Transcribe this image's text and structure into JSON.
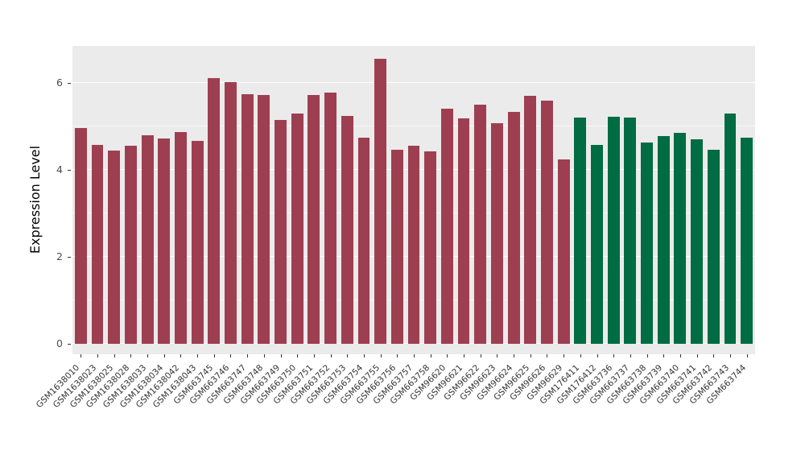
{
  "chart_data": {
    "type": "bar",
    "title": "",
    "xlabel": "",
    "ylabel": "Expression Level",
    "ylim": [
      0,
      6.9
    ],
    "yticks": [
      0,
      2,
      4,
      6
    ],
    "grid_minor": [
      1,
      3,
      5
    ],
    "legend": "none",
    "panel_background": "#EBEBEB",
    "grid_color": "#FFFFFF",
    "group_colors": {
      "g1": "#9E3F51",
      "g2": "#006C43"
    },
    "categories": [
      "GSM1638010",
      "GSM1638023",
      "GSM1638025",
      "GSM1638028",
      "GSM1638033",
      "GSM1638034",
      "GSM1638042",
      "GSM1638043",
      "GSM663745",
      "GSM663746",
      "GSM663747",
      "GSM663748",
      "GSM663749",
      "GSM663750",
      "GSM663751",
      "GSM663752",
      "GSM663753",
      "GSM663754",
      "GSM663755",
      "GSM663756",
      "GSM663757",
      "GSM663758",
      "GSM96620",
      "GSM96621",
      "GSM96622",
      "GSM96623",
      "GSM96624",
      "GSM96625",
      "GSM96626",
      "GSM96629",
      "GSM176411",
      "GSM176412",
      "GSM663736",
      "GSM663737",
      "GSM663738",
      "GSM663739",
      "GSM663740",
      "GSM663741",
      "GSM663742",
      "GSM663743",
      "GSM663744"
    ],
    "values": [
      4.97,
      4.57,
      4.45,
      4.55,
      4.8,
      4.72,
      4.87,
      4.67,
      6.12,
      6.02,
      5.75,
      5.72,
      5.15,
      5.3,
      5.73,
      5.78,
      5.25,
      4.75,
      6.55,
      4.47,
      4.55,
      4.43,
      5.4,
      5.18,
      5.5,
      5.07,
      5.33,
      5.7,
      5.6,
      4.25,
      5.2,
      4.58,
      5.22,
      5.2,
      4.63,
      4.78,
      4.85,
      4.7,
      4.47,
      5.3,
      4.75
    ],
    "groups": [
      "g1",
      "g1",
      "g1",
      "g1",
      "g1",
      "g1",
      "g1",
      "g1",
      "g1",
      "g1",
      "g1",
      "g1",
      "g1",
      "g1",
      "g1",
      "g1",
      "g1",
      "g1",
      "g1",
      "g1",
      "g1",
      "g1",
      "g1",
      "g1",
      "g1",
      "g1",
      "g1",
      "g1",
      "g1",
      "g1",
      "g2",
      "g2",
      "g2",
      "g2",
      "g2",
      "g2",
      "g2",
      "g2",
      "g2",
      "g2",
      "g2"
    ]
  }
}
